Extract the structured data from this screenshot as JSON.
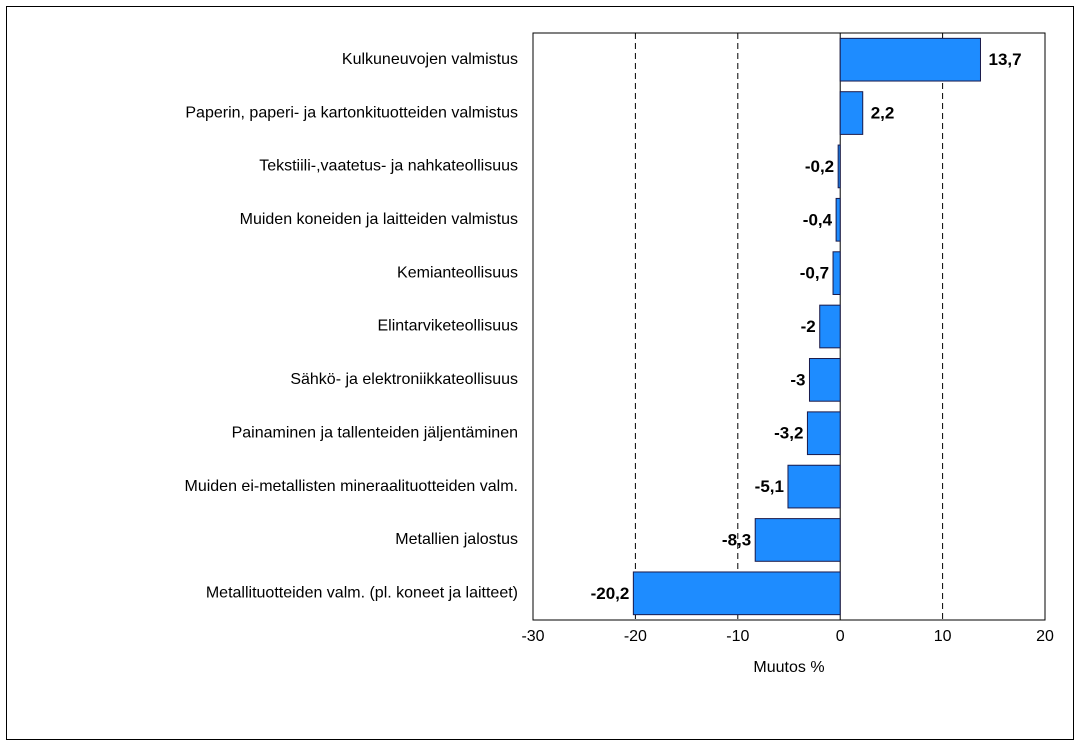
{
  "chart_data": {
    "type": "barh",
    "categories": [
      "Kulkuneuvojen valmistus",
      "Paperin, paperi- ja kartonkituotteiden valmistus",
      "Tekstiili-,vaatetus- ja nahkateollisuus",
      "Muiden koneiden ja laitteiden valmistus",
      "Kemianteollisuus",
      "Elintarviketeollisuus",
      "Sähkö- ja elektroniikkateollisuus",
      "Painaminen ja tallenteiden jäljentäminen",
      "Muiden ei-metallisten mineraalituotteiden valm.",
      "Metallien jalostus",
      "Metallituotteiden valm. (pl. koneet ja laitteet)"
    ],
    "values": [
      13.7,
      2.2,
      -0.2,
      -0.4,
      -0.7,
      -2,
      -3,
      -3.2,
      -5.1,
      -8.3,
      -20.2
    ],
    "value_labels": [
      "13,7",
      "2,2",
      "-0,2",
      "-0,4",
      "-0,7",
      "-2",
      "-3",
      "-3,2",
      "-5,1",
      "-8,3",
      "-20,2"
    ],
    "color": "#1e8cff",
    "xlabel": "Muutos %",
    "xlim": [
      -30,
      20
    ],
    "xticks": [
      -30,
      -20,
      -10,
      0,
      10,
      20
    ],
    "grid": true
  }
}
